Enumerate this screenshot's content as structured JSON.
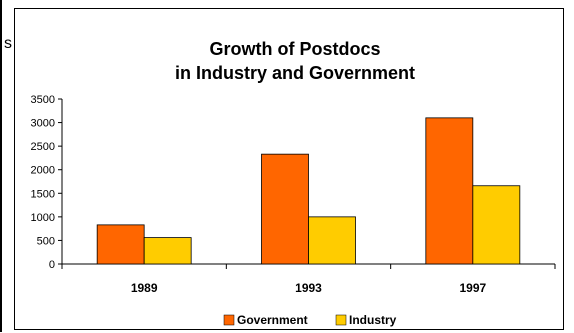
{
  "page": {
    "edge_glyph": "s"
  },
  "colors": {
    "government": "#FF6600",
    "industry": "#FFCC00",
    "axis": "#000000",
    "bar_outline": "#000000"
  },
  "chart_data": {
    "type": "bar",
    "title": "Growth of Postdocs",
    "subtitle": "in Industry and Government",
    "xlabel": "",
    "ylabel": "",
    "categories": [
      "1989",
      "1993",
      "1997"
    ],
    "series": [
      {
        "name": "Government",
        "values": [
          830,
          2330,
          3100
        ]
      },
      {
        "name": "Industry",
        "values": [
          560,
          1000,
          1660
        ]
      }
    ],
    "ylim": [
      0,
      3500
    ],
    "yticks": [
      "0",
      "500",
      "1000",
      "1500",
      "2000",
      "2500",
      "3000",
      "3500"
    ],
    "grid": false,
    "legend": "bottom"
  }
}
